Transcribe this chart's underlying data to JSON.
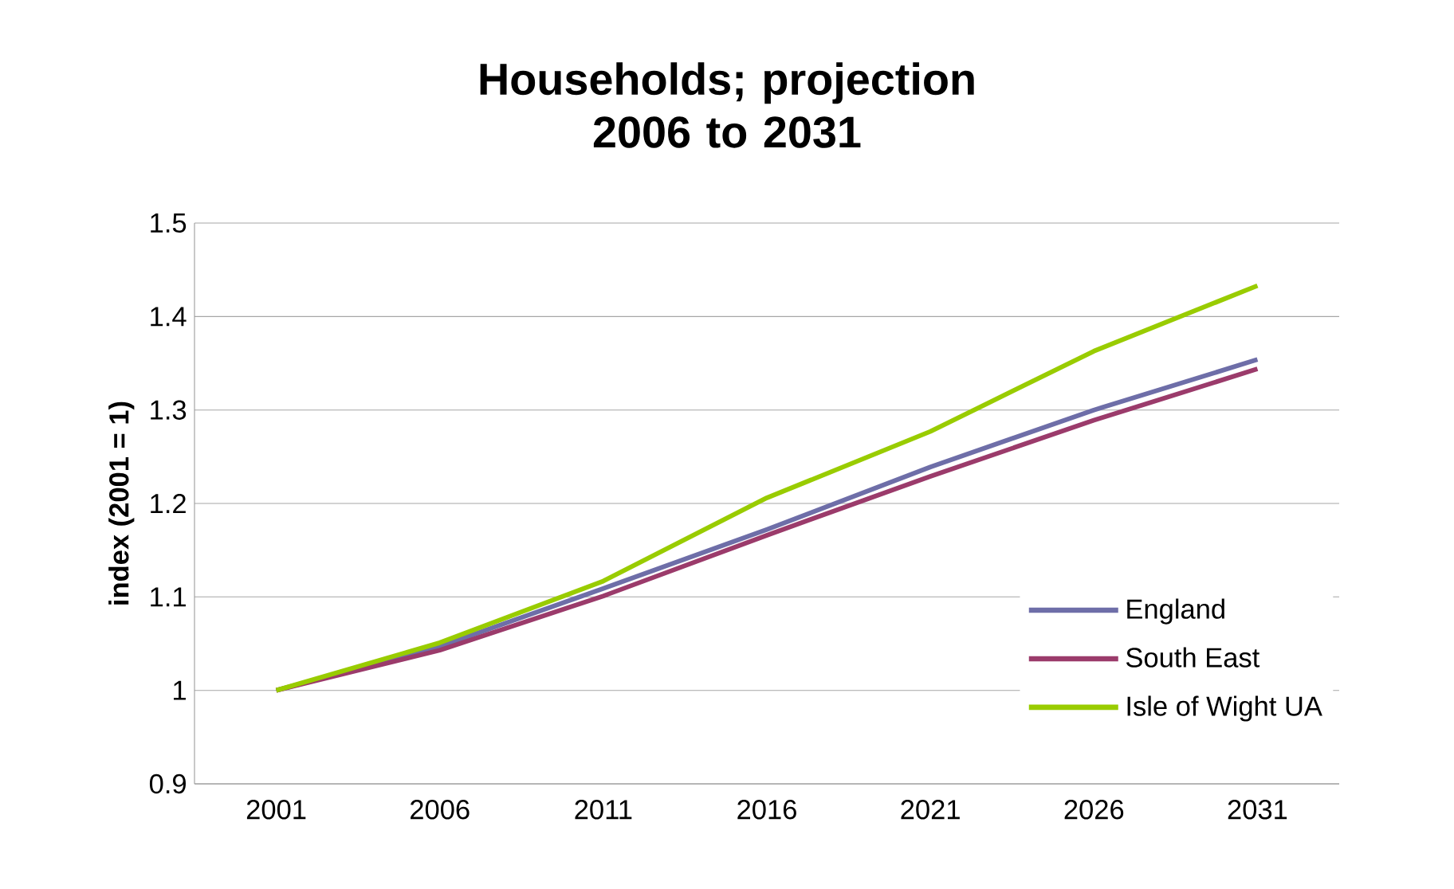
{
  "chart_data": {
    "type": "line",
    "title": "Households; projection 2006 to 2031",
    "ylabel": "index (2001 = 1)",
    "categories": [
      "2001",
      "2006",
      "2011",
      "2016",
      "2021",
      "2026",
      "2031"
    ],
    "series": [
      {
        "name": "England",
        "color": "#6e6ea8",
        "values": [
          1.0,
          1.047,
          1.109,
          1.172,
          1.239,
          1.3,
          1.354
        ]
      },
      {
        "name": "South East",
        "color": "#9b3b6b",
        "values": [
          1.0,
          1.043,
          1.101,
          1.166,
          1.229,
          1.289,
          1.344
        ]
      },
      {
        "name": "Isle of Wight UA",
        "color": "#99cc00",
        "values": [
          1.0,
          1.051,
          1.117,
          1.206,
          1.277,
          1.363,
          1.433
        ]
      }
    ],
    "ylim": [
      0.9,
      1.5
    ],
    "yticks": [
      0.9,
      1,
      1.1,
      1.2,
      1.3,
      1.4,
      1.5
    ],
    "grid": "y",
    "legend": "right",
    "marker": "none",
    "line_style": "solid"
  }
}
